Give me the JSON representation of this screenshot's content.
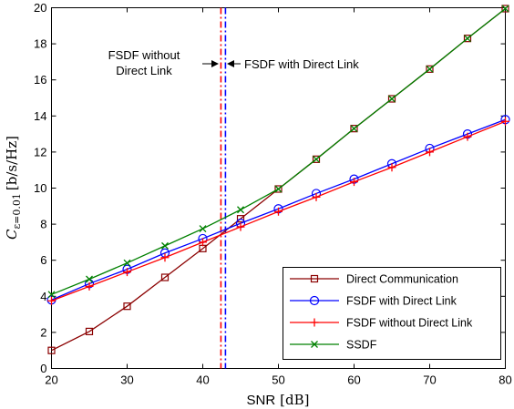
{
  "chart_data": {
    "type": "line",
    "xlabel": {
      "main": "SNR",
      "unit": "[dB]"
    },
    "ylabel": {
      "symbol": "C",
      "subscript": "ε=0.01",
      "unit": "[b/s/Hz]"
    },
    "xlim": [
      20,
      80
    ],
    "ylim": [
      0,
      20
    ],
    "x_ticks": [
      20,
      30,
      40,
      50,
      60,
      70,
      80
    ],
    "y_ticks": [
      0,
      2,
      4,
      6,
      8,
      10,
      12,
      14,
      16,
      18,
      20
    ],
    "grid": false,
    "legend_position": "bottom-right",
    "x": [
      20,
      25,
      30,
      35,
      40,
      45,
      50,
      55,
      60,
      65,
      70,
      75,
      80
    ],
    "series": [
      {
        "name": "Direct Communication",
        "color": "#8b0000",
        "marker": "square",
        "values": [
          1.0,
          2.05,
          3.45,
          5.05,
          6.65,
          8.3,
          9.95,
          11.6,
          13.3,
          14.95,
          16.6,
          18.3,
          19.95
        ]
      },
      {
        "name": "FSDF with Direct Link",
        "color": "#0000ff",
        "marker": "circle",
        "values": [
          3.8,
          4.7,
          5.5,
          6.4,
          7.2,
          8.05,
          8.85,
          9.7,
          10.5,
          11.35,
          12.2,
          13.0,
          13.8
        ]
      },
      {
        "name": "FSDF without Direct Link",
        "color": "#ff0000",
        "marker": "plus",
        "values": [
          3.75,
          4.55,
          5.35,
          6.15,
          7.0,
          7.85,
          8.7,
          9.5,
          10.35,
          11.15,
          12.0,
          12.85,
          13.7
        ]
      },
      {
        "name": "SSDF",
        "color": "#008000",
        "marker": "x",
        "values": [
          4.1,
          4.95,
          5.85,
          6.8,
          7.75,
          8.8,
          9.95,
          11.6,
          13.3,
          14.95,
          16.6,
          18.3,
          19.95
        ]
      }
    ],
    "vertical_lines": [
      {
        "x": 42.4,
        "color": "#ff0000"
      },
      {
        "x": 43.0,
        "color": "#0000ff"
      }
    ],
    "annotations": [
      {
        "lines": [
          "FSDF without",
          "Direct Link"
        ]
      },
      {
        "lines": [
          "FSDF with Direct Link"
        ]
      }
    ]
  }
}
